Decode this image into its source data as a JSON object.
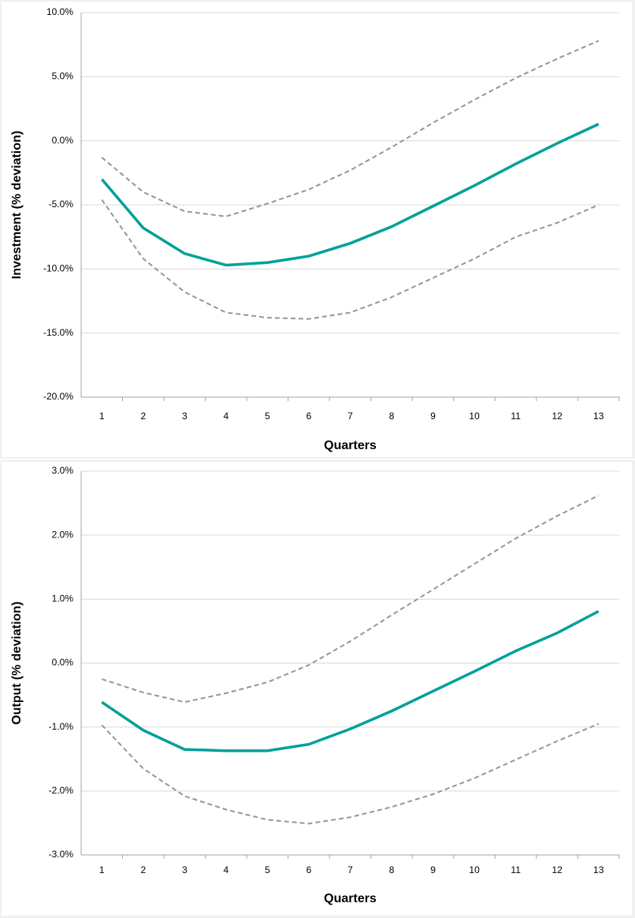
{
  "chart_data": [
    {
      "type": "line",
      "y_label": "Investment (% deviation)",
      "x_label": "Quarters",
      "categories": [
        "1",
        "2",
        "3",
        "4",
        "5",
        "6",
        "7",
        "8",
        "9",
        "10",
        "11",
        "12",
        "13"
      ],
      "ylim": [
        -20,
        10
      ],
      "yticks": [
        {
          "value": -20,
          "label": "-20.0%"
        },
        {
          "value": -15,
          "label": "-15.0%"
        },
        {
          "value": -10,
          "label": "-10.0%"
        },
        {
          "value": -5,
          "label": "-5.0%"
        },
        {
          "value": 0,
          "label": "0.0%"
        },
        {
          "value": 5,
          "label": "5.0%"
        },
        {
          "value": 10,
          "label": "10.0%"
        }
      ],
      "grid": true,
      "series": [
        {
          "color": "#969696",
          "dashed": true,
          "values": [
            -1.3,
            -4.0,
            -5.5,
            -5.9,
            -4.9,
            -3.8,
            -2.3,
            -0.5,
            1.4,
            3.2,
            4.9,
            6.4,
            7.8
          ]
        },
        {
          "color": "#969696",
          "dashed": true,
          "values": [
            -4.6,
            -9.2,
            -11.8,
            -13.4,
            -13.8,
            -13.9,
            -13.4,
            -12.2,
            -10.7,
            -9.2,
            -7.5,
            -6.4,
            -5.0
          ]
        },
        {
          "color": "#00a09a",
          "dashed": false,
          "values": [
            -3.0,
            -6.8,
            -8.8,
            -9.7,
            -9.5,
            -9.0,
            -8.0,
            -6.7,
            -5.1,
            -3.5,
            -1.8,
            -0.2,
            1.3
          ]
        }
      ]
    },
    {
      "type": "line",
      "y_label": "Output (% deviation)",
      "x_label": "Quarters",
      "categories": [
        "1",
        "2",
        "3",
        "4",
        "5",
        "6",
        "7",
        "8",
        "9",
        "10",
        "11",
        "12",
        "13"
      ],
      "ylim": [
        -3,
        3
      ],
      "yticks": [
        {
          "value": -3,
          "label": "-3.0%"
        },
        {
          "value": -2,
          "label": "-2.0%"
        },
        {
          "value": -1,
          "label": "-1.0%"
        },
        {
          "value": 0,
          "label": "0.0%"
        },
        {
          "value": 1,
          "label": "1.0%"
        },
        {
          "value": 2,
          "label": "2.0%"
        },
        {
          "value": 3,
          "label": "3.0%"
        }
      ],
      "grid": true,
      "series": [
        {
          "color": "#969696",
          "dashed": true,
          "values": [
            -0.25,
            -0.46,
            -0.61,
            -0.47,
            -0.3,
            -0.03,
            0.34,
            0.75,
            1.15,
            1.55,
            1.95,
            2.3,
            2.62
          ]
        },
        {
          "color": "#969696",
          "dashed": true,
          "values": [
            -0.97,
            -1.65,
            -2.08,
            -2.29,
            -2.45,
            -2.51,
            -2.41,
            -2.25,
            -2.05,
            -1.8,
            -1.51,
            -1.22,
            -0.95
          ]
        },
        {
          "color": "#00a09a",
          "dashed": false,
          "values": [
            -0.61,
            -1.05,
            -1.35,
            -1.37,
            -1.37,
            -1.27,
            -1.03,
            -0.75,
            -0.44,
            -0.13,
            0.19,
            0.47,
            0.81
          ]
        }
      ]
    }
  ]
}
